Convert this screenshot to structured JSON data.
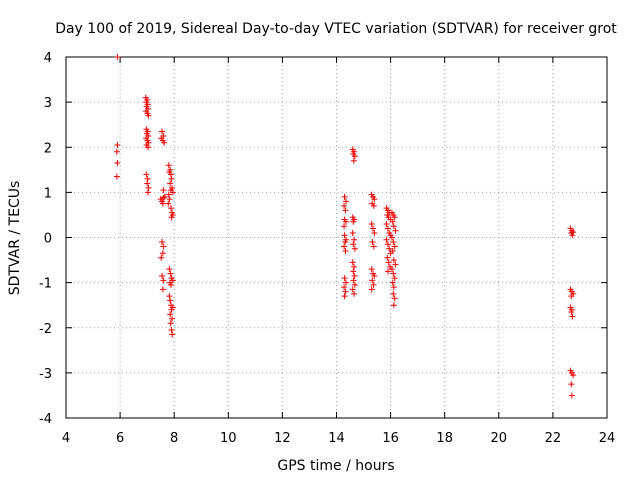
{
  "chart_data": {
    "type": "scatter",
    "title": "Day 100 of 2019, Sidereal Day-to-day VTEC variation (SDTVAR) for receiver grot",
    "xlabel": "GPS time / hours",
    "ylabel": "SDTVAR / TECUs",
    "xlim": [
      4,
      24
    ],
    "ylim": [
      -4,
      4
    ],
    "xticks": [
      4,
      6,
      8,
      10,
      12,
      14,
      16,
      18,
      20,
      22,
      24
    ],
    "yticks": [
      -4,
      -3,
      -2,
      -1,
      0,
      1,
      2,
      3,
      4
    ],
    "grid": true,
    "marker": "+",
    "marker_color": "#ee0000",
    "series": [
      {
        "name": "SDTVAR",
        "points": [
          [
            5.9,
            4.0
          ],
          [
            5.9,
            2.05
          ],
          [
            5.88,
            1.9
          ],
          [
            5.9,
            1.65
          ],
          [
            5.88,
            1.35
          ],
          [
            6.95,
            3.1
          ],
          [
            7.0,
            3.05
          ],
          [
            6.97,
            3.0
          ],
          [
            7.02,
            2.95
          ],
          [
            6.98,
            2.9
          ],
          [
            7.03,
            2.85
          ],
          [
            6.96,
            2.8
          ],
          [
            7.01,
            2.75
          ],
          [
            7.05,
            2.7
          ],
          [
            6.97,
            2.4
          ],
          [
            7.02,
            2.35
          ],
          [
            6.99,
            2.3
          ],
          [
            7.04,
            2.25
          ],
          [
            6.96,
            2.2
          ],
          [
            7.01,
            2.15
          ],
          [
            7.05,
            2.1
          ],
          [
            6.98,
            2.05
          ],
          [
            7.03,
            2.0
          ],
          [
            6.97,
            1.4
          ],
          [
            7.02,
            1.3
          ],
          [
            7.0,
            1.2
          ],
          [
            7.05,
            1.1
          ],
          [
            7.03,
            1.0
          ],
          [
            7.55,
            2.35
          ],
          [
            7.6,
            2.25
          ],
          [
            7.52,
            2.2
          ],
          [
            7.58,
            2.15
          ],
          [
            7.63,
            2.1
          ],
          [
            7.5,
            0.85
          ],
          [
            7.55,
            0.8
          ],
          [
            7.6,
            0.88
          ],
          [
            7.65,
            0.9
          ],
          [
            7.58,
            0.75
          ],
          [
            7.6,
            1.05
          ],
          [
            7.55,
            -0.1
          ],
          [
            7.6,
            -0.2
          ],
          [
            7.58,
            -0.35
          ],
          [
            7.52,
            -0.45
          ],
          [
            7.55,
            -0.85
          ],
          [
            7.6,
            -0.95
          ],
          [
            7.58,
            -1.15
          ],
          [
            7.8,
            1.6
          ],
          [
            7.85,
            1.5
          ],
          [
            7.82,
            1.45
          ],
          [
            7.88,
            1.4
          ],
          [
            7.9,
            1.3
          ],
          [
            7.85,
            1.2
          ],
          [
            7.92,
            1.1
          ],
          [
            7.88,
            1.05
          ],
          [
            7.95,
            1.0
          ],
          [
            7.8,
            0.95
          ],
          [
            7.83,
            0.85
          ],
          [
            7.78,
            0.75
          ],
          [
            7.88,
            0.65
          ],
          [
            7.92,
            0.55
          ],
          [
            7.95,
            0.5
          ],
          [
            7.9,
            0.45
          ],
          [
            7.82,
            -0.7
          ],
          [
            7.86,
            -0.8
          ],
          [
            7.9,
            -0.9
          ],
          [
            7.84,
            -1.0
          ],
          [
            7.88,
            -1.05
          ],
          [
            7.95,
            -0.95
          ],
          [
            7.82,
            -1.3
          ],
          [
            7.85,
            -1.4
          ],
          [
            7.88,
            -1.5
          ],
          [
            7.9,
            -1.6
          ],
          [
            7.85,
            -1.7
          ],
          [
            7.92,
            -1.8
          ],
          [
            7.87,
            -1.9
          ],
          [
            7.95,
            -1.55
          ],
          [
            7.9,
            -2.05
          ],
          [
            7.93,
            -2.15
          ],
          [
            14.3,
            0.9
          ],
          [
            14.35,
            0.8
          ],
          [
            14.28,
            0.7
          ],
          [
            14.33,
            0.6
          ],
          [
            14.3,
            0.4
          ],
          [
            14.35,
            0.35
          ],
          [
            14.28,
            0.25
          ],
          [
            14.3,
            0.05
          ],
          [
            14.35,
            -0.05
          ],
          [
            14.32,
            -0.1
          ],
          [
            14.28,
            -0.2
          ],
          [
            14.33,
            -0.3
          ],
          [
            14.3,
            -0.9
          ],
          [
            14.35,
            -1.0
          ],
          [
            14.28,
            -1.1
          ],
          [
            14.33,
            -1.2
          ],
          [
            14.3,
            -1.3
          ],
          [
            14.6,
            1.95
          ],
          [
            14.65,
            1.9
          ],
          [
            14.62,
            1.85
          ],
          [
            14.68,
            1.8
          ],
          [
            14.64,
            1.7
          ],
          [
            14.6,
            0.45
          ],
          [
            14.65,
            0.4
          ],
          [
            14.62,
            0.35
          ],
          [
            14.6,
            0.1
          ],
          [
            14.65,
            -0.05
          ],
          [
            14.62,
            -0.15
          ],
          [
            14.68,
            -0.25
          ],
          [
            14.6,
            -0.55
          ],
          [
            14.65,
            -0.65
          ],
          [
            14.62,
            -0.75
          ],
          [
            14.67,
            -0.85
          ],
          [
            14.63,
            -0.95
          ],
          [
            14.68,
            -1.05
          ],
          [
            14.6,
            -1.15
          ],
          [
            14.65,
            -1.25
          ],
          [
            15.3,
            0.95
          ],
          [
            15.35,
            0.9
          ],
          [
            15.4,
            0.85
          ],
          [
            15.32,
            0.75
          ],
          [
            15.38,
            0.7
          ],
          [
            15.3,
            0.3
          ],
          [
            15.35,
            0.2
          ],
          [
            15.4,
            0.1
          ],
          [
            15.33,
            -0.1
          ],
          [
            15.38,
            -0.2
          ],
          [
            15.3,
            -0.7
          ],
          [
            15.35,
            -0.8
          ],
          [
            15.4,
            -0.85
          ],
          [
            15.32,
            -0.95
          ],
          [
            15.37,
            -1.05
          ],
          [
            15.3,
            -1.15
          ],
          [
            15.85,
            0.65
          ],
          [
            15.9,
            0.6
          ],
          [
            15.95,
            0.55
          ],
          [
            15.88,
            0.5
          ],
          [
            15.92,
            0.45
          ],
          [
            16.0,
            0.4
          ],
          [
            15.85,
            0.3
          ],
          [
            15.9,
            0.2
          ],
          [
            15.95,
            0.1
          ],
          [
            16.0,
            0.05
          ],
          [
            15.85,
            -0.05
          ],
          [
            15.9,
            -0.15
          ],
          [
            15.95,
            -0.25
          ],
          [
            16.0,
            -0.35
          ],
          [
            15.88,
            -0.45
          ],
          [
            15.93,
            -0.55
          ],
          [
            15.98,
            -0.65
          ],
          [
            15.9,
            -0.75
          ],
          [
            16.05,
            0.55
          ],
          [
            16.1,
            0.5
          ],
          [
            16.15,
            0.45
          ],
          [
            16.08,
            0.35
          ],
          [
            16.12,
            0.25
          ],
          [
            16.18,
            0.15
          ],
          [
            16.05,
            0.0
          ],
          [
            16.1,
            -0.1
          ],
          [
            16.15,
            -0.2
          ],
          [
            16.08,
            -0.3
          ],
          [
            16.12,
            -0.5
          ],
          [
            16.18,
            -0.6
          ],
          [
            16.05,
            -0.7
          ],
          [
            16.1,
            -0.8
          ],
          [
            16.15,
            -0.9
          ],
          [
            16.08,
            -1.0
          ],
          [
            16.12,
            -1.1
          ],
          [
            16.1,
            -1.25
          ],
          [
            16.15,
            -1.35
          ],
          [
            16.12,
            -1.5
          ],
          [
            22.65,
            0.2
          ],
          [
            22.7,
            0.15
          ],
          [
            22.75,
            0.12
          ],
          [
            22.68,
            0.1
          ],
          [
            22.72,
            0.05
          ],
          [
            22.65,
            -1.15
          ],
          [
            22.7,
            -1.2
          ],
          [
            22.75,
            -1.25
          ],
          [
            22.68,
            -1.3
          ],
          [
            22.65,
            -1.55
          ],
          [
            22.7,
            -1.6
          ],
          [
            22.68,
            -1.65
          ],
          [
            22.72,
            -1.75
          ],
          [
            22.65,
            -2.95
          ],
          [
            22.7,
            -3.0
          ],
          [
            22.75,
            -3.05
          ],
          [
            22.68,
            -3.25
          ],
          [
            22.7,
            -3.5
          ]
        ]
      }
    ]
  }
}
